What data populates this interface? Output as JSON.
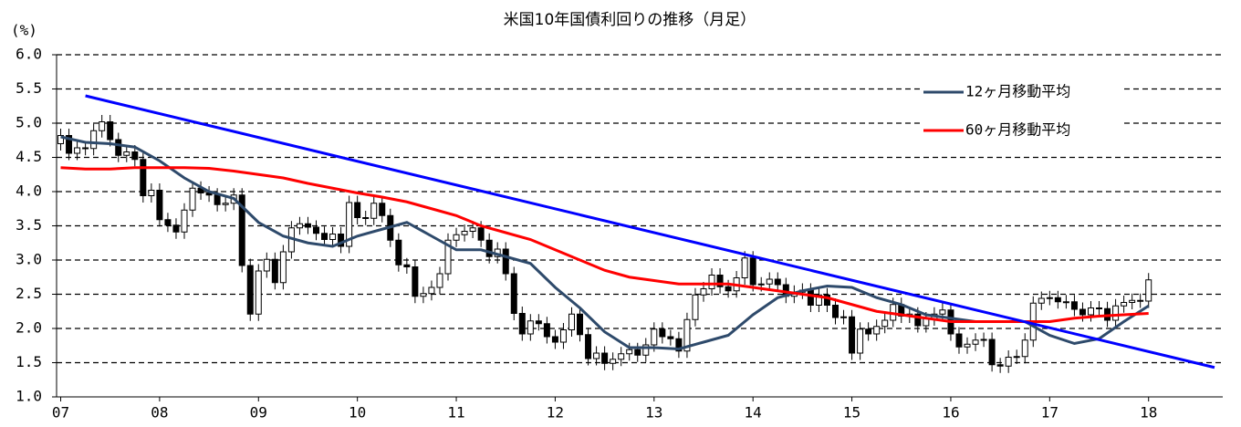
{
  "chart_data": {
    "type": "candlestick",
    "title": "米国10年国債利回りの推移（月足）",
    "y_label": "(%)",
    "categories": [
      "07",
      null,
      null,
      null,
      null,
      null,
      null,
      null,
      null,
      null,
      null,
      null,
      "08",
      null,
      null,
      null,
      null,
      null,
      null,
      null,
      null,
      null,
      null,
      null,
      "09",
      null,
      null,
      null,
      null,
      null,
      null,
      null,
      null,
      null,
      null,
      null,
      "10",
      null,
      null,
      null,
      null,
      null,
      null,
      null,
      null,
      null,
      null,
      null,
      "11",
      null,
      null,
      null,
      null,
      null,
      null,
      null,
      null,
      null,
      null,
      null,
      "12",
      null,
      null,
      null,
      null,
      null,
      null,
      null,
      null,
      null,
      null,
      null,
      "13",
      null,
      null,
      null,
      null,
      null,
      null,
      null,
      null,
      null,
      null,
      null,
      "14",
      null,
      null,
      null,
      null,
      null,
      null,
      null,
      null,
      null,
      null,
      null,
      "15",
      null,
      null,
      null,
      null,
      null,
      null,
      null,
      null,
      null,
      null,
      null,
      "16",
      null,
      null,
      null,
      null,
      null,
      null,
      null,
      null,
      null,
      null,
      null,
      "17",
      null,
      null,
      null,
      null,
      null,
      null,
      null,
      null,
      null,
      null,
      null,
      "18"
    ],
    "open": [
      4.7,
      4.82,
      4.56,
      4.64,
      4.63,
      4.89,
      5.02,
      4.76,
      4.53,
      4.58,
      4.47,
      3.94,
      4.02,
      3.59,
      3.51,
      3.41,
      3.73,
      4.05,
      3.98,
      3.95,
      3.81,
      3.83,
      3.95,
      2.92,
      2.21,
      2.84,
      3.01,
      2.67,
      3.12,
      3.47,
      3.53,
      3.48,
      3.39,
      3.3,
      3.38,
      3.2,
      3.84,
      3.62,
      3.61,
      3.83,
      3.65,
      3.29,
      2.93,
      2.9,
      2.47,
      2.51,
      2.6,
      2.8,
      3.29,
      3.37,
      3.42,
      3.47,
      3.29,
      3.05,
      3.16,
      2.8,
      2.22,
      1.92,
      2.11,
      2.07,
      1.88,
      1.8,
      1.98,
      2.21,
      1.91,
      1.56,
      1.64,
      1.49,
      1.55,
      1.63,
      1.69,
      1.61,
      1.76,
      1.99,
      1.88,
      1.85,
      1.67,
      2.13,
      2.49,
      2.58,
      2.78,
      2.61,
      2.55,
      2.74,
      3.03,
      2.64,
      2.65,
      2.72,
      2.64,
      2.47,
      2.53,
      2.56,
      2.34,
      2.49,
      2.34,
      2.16,
      2.17,
      1.64,
      1.99,
      1.92,
      2.03,
      2.12,
      2.35,
      2.18,
      2.21,
      2.04,
      2.14,
      2.21,
      2.27,
      1.92,
      1.73,
      1.77,
      1.83,
      1.84,
      1.47,
      1.45,
      1.58,
      1.59,
      1.83,
      2.37,
      2.44,
      2.45,
      2.39,
      2.39,
      2.28,
      2.2,
      2.3,
      2.29,
      2.12,
      2.33,
      2.38,
      2.41,
      2.4
    ],
    "high": [
      4.92,
      4.92,
      4.74,
      4.74,
      4.99,
      5.12,
      5.12,
      4.86,
      4.68,
      4.68,
      4.57,
      4.12,
      4.12,
      3.69,
      3.61,
      3.83,
      4.15,
      4.15,
      4.08,
      4.05,
      3.93,
      4.05,
      4.05,
      3.02,
      2.94,
      3.11,
      3.11,
      3.22,
      3.57,
      3.63,
      3.63,
      3.58,
      3.49,
      3.48,
      3.48,
      3.94,
      3.94,
      3.72,
      3.93,
      3.93,
      3.75,
      3.39,
      3.03,
      3.0,
      2.61,
      2.7,
      2.9,
      3.39,
      3.47,
      3.52,
      3.57,
      3.57,
      3.39,
      3.26,
      3.26,
      2.9,
      2.32,
      2.21,
      2.21,
      2.17,
      1.98,
      2.08,
      2.31,
      2.31,
      2.01,
      1.74,
      1.74,
      1.65,
      1.73,
      1.79,
      1.79,
      1.86,
      2.09,
      2.09,
      1.98,
      1.95,
      2.23,
      2.59,
      2.68,
      2.88,
      2.88,
      2.71,
      2.84,
      3.13,
      3.13,
      2.75,
      2.82,
      2.82,
      2.74,
      2.63,
      2.66,
      2.66,
      2.59,
      2.59,
      2.44,
      2.27,
      2.27,
      2.09,
      2.09,
      2.13,
      2.22,
      2.45,
      2.45,
      2.31,
      2.31,
      2.24,
      2.31,
      2.37,
      2.37,
      2.02,
      1.87,
      1.93,
      1.94,
      1.94,
      1.57,
      1.68,
      1.69,
      1.93,
      2.47,
      2.54,
      2.55,
      2.55,
      2.49,
      2.49,
      2.38,
      2.4,
      2.4,
      2.39,
      2.43,
      2.48,
      2.51,
      2.51,
      2.81
    ],
    "low": [
      4.6,
      4.46,
      4.46,
      4.53,
      4.53,
      4.79,
      4.66,
      4.43,
      4.43,
      4.37,
      3.84,
      3.84,
      3.49,
      3.41,
      3.31,
      3.31,
      3.63,
      3.88,
      3.85,
      3.71,
      3.71,
      3.73,
      2.82,
      2.11,
      2.11,
      2.74,
      2.57,
      2.57,
      3.02,
      3.37,
      3.38,
      3.29,
      3.2,
      3.2,
      3.1,
      3.1,
      3.52,
      3.51,
      3.51,
      3.55,
      3.19,
      2.83,
      2.8,
      2.37,
      2.37,
      2.41,
      2.5,
      2.7,
      3.19,
      3.27,
      3.32,
      3.19,
      2.95,
      2.95,
      2.7,
      2.12,
      1.82,
      1.82,
      1.97,
      1.78,
      1.7,
      1.7,
      1.88,
      1.81,
      1.46,
      1.46,
      1.39,
      1.39,
      1.45,
      1.53,
      1.51,
      1.51,
      1.66,
      1.78,
      1.75,
      1.57,
      1.57,
      2.03,
      2.39,
      2.48,
      2.51,
      2.45,
      2.45,
      2.64,
      2.54,
      2.54,
      2.55,
      2.54,
      2.37,
      2.37,
      2.43,
      2.24,
      2.24,
      2.24,
      2.06,
      2.06,
      1.54,
      1.54,
      1.82,
      1.82,
      1.93,
      2.02,
      2.08,
      2.08,
      1.94,
      1.94,
      2.04,
      2.11,
      1.82,
      1.63,
      1.63,
      1.67,
      1.73,
      1.37,
      1.35,
      1.35,
      1.48,
      1.49,
      1.73,
      2.27,
      2.34,
      2.29,
      2.29,
      2.18,
      2.1,
      2.1,
      2.19,
      2.02,
      2.02,
      2.23,
      2.28,
      2.3,
      2.3
    ],
    "close": [
      4.82,
      4.56,
      4.64,
      4.63,
      4.89,
      5.02,
      4.76,
      4.53,
      4.58,
      4.47,
      3.94,
      4.02,
      3.59,
      3.51,
      3.41,
      3.73,
      4.05,
      3.98,
      3.95,
      3.81,
      3.83,
      3.95,
      2.92,
      2.21,
      2.84,
      3.01,
      2.67,
      3.12,
      3.47,
      3.53,
      3.48,
      3.39,
      3.3,
      3.38,
      3.2,
      3.84,
      3.62,
      3.61,
      3.83,
      3.65,
      3.29,
      2.93,
      2.9,
      2.47,
      2.51,
      2.6,
      2.8,
      3.29,
      3.37,
      3.42,
      3.47,
      3.29,
      3.05,
      3.16,
      2.8,
      2.22,
      1.92,
      2.11,
      2.07,
      1.88,
      1.8,
      1.98,
      2.21,
      1.91,
      1.56,
      1.64,
      1.49,
      1.55,
      1.63,
      1.69,
      1.61,
      1.76,
      1.99,
      1.88,
      1.85,
      1.67,
      2.13,
      2.49,
      2.58,
      2.78,
      2.61,
      2.55,
      2.74,
      3.03,
      2.64,
      2.65,
      2.72,
      2.64,
      2.47,
      2.53,
      2.56,
      2.34,
      2.49,
      2.34,
      2.16,
      2.17,
      1.64,
      1.99,
      1.92,
      2.03,
      2.12,
      2.35,
      2.18,
      2.21,
      2.04,
      2.14,
      2.21,
      2.27,
      1.92,
      1.73,
      1.77,
      1.83,
      1.84,
      1.47,
      1.45,
      1.58,
      1.59,
      1.83,
      2.37,
      2.44,
      2.45,
      2.39,
      2.39,
      2.28,
      2.2,
      2.3,
      2.29,
      2.12,
      2.33,
      2.38,
      2.41,
      2.4,
      2.71
    ],
    "up_color": "#ffffff",
    "down_color": "#000000",
    "series": [
      {
        "name": "12ヶ月移動平均",
        "color": "#2e4a6b",
        "x": [
          0,
          3,
          6,
          9,
          12,
          15,
          18,
          21,
          24,
          27,
          30,
          33,
          36,
          39,
          42,
          45,
          48,
          51,
          54,
          57,
          60,
          63,
          66,
          69,
          72,
          75,
          78,
          81,
          84,
          87,
          90,
          93,
          96,
          99,
          102,
          105,
          108,
          111,
          114,
          117,
          120,
          123,
          126,
          129,
          132
        ],
        "values": [
          4.8,
          4.72,
          4.7,
          4.65,
          4.45,
          4.2,
          4.0,
          3.9,
          3.55,
          3.35,
          3.25,
          3.2,
          3.35,
          3.45,
          3.55,
          3.35,
          3.15,
          3.15,
          3.05,
          2.95,
          2.6,
          2.3,
          1.95,
          1.72,
          1.72,
          1.7,
          1.8,
          1.9,
          2.2,
          2.45,
          2.55,
          2.62,
          2.6,
          2.45,
          2.35,
          2.2,
          2.15,
          2.1,
          2.1,
          2.1,
          1.9,
          1.78,
          1.85,
          2.1,
          2.33
        ]
      },
      {
        "name": "60ヶ月移動平均",
        "color": "#ff0000",
        "x": [
          0,
          3,
          6,
          9,
          12,
          15,
          18,
          21,
          24,
          27,
          30,
          33,
          36,
          39,
          42,
          45,
          48,
          51,
          54,
          57,
          60,
          63,
          66,
          69,
          72,
          75,
          78,
          81,
          84,
          87,
          90,
          93,
          96,
          99,
          102,
          105,
          108,
          111,
          114,
          117,
          120,
          123,
          126,
          129,
          132
        ],
        "values": [
          4.35,
          4.33,
          4.33,
          4.35,
          4.35,
          4.35,
          4.34,
          4.3,
          4.25,
          4.2,
          4.12,
          4.05,
          3.98,
          3.92,
          3.85,
          3.75,
          3.65,
          3.5,
          3.4,
          3.3,
          3.15,
          3.0,
          2.85,
          2.75,
          2.7,
          2.65,
          2.65,
          2.65,
          2.6,
          2.55,
          2.5,
          2.45,
          2.35,
          2.25,
          2.2,
          2.15,
          2.1,
          2.1,
          2.1,
          2.1,
          2.1,
          2.15,
          2.18,
          2.2,
          2.22
        ]
      }
    ],
    "trend_line": {
      "color": "#0000ff",
      "x": [
        3,
        140
      ],
      "values": [
        5.4,
        1.43
      ]
    },
    "xlim": [
      -0.5,
      141
    ],
    "ylim": [
      1,
      6
    ],
    "yticks": [
      {
        "value": 1,
        "label": "1.0"
      },
      {
        "value": 1.5,
        "label": "1.5"
      },
      {
        "value": 2,
        "label": "2.0"
      },
      {
        "value": 2.5,
        "label": "2.5"
      },
      {
        "value": 3,
        "label": "3.0"
      },
      {
        "value": 3.5,
        "label": "3.5"
      },
      {
        "value": 4,
        "label": "4.0"
      },
      {
        "value": 4.5,
        "label": "4.5"
      },
      {
        "value": 5,
        "label": "5.0"
      },
      {
        "value": 5.5,
        "label": "5.5"
      },
      {
        "value": 6,
        "label": "6.0"
      }
    ],
    "grid": true,
    "legend": "upper right"
  }
}
